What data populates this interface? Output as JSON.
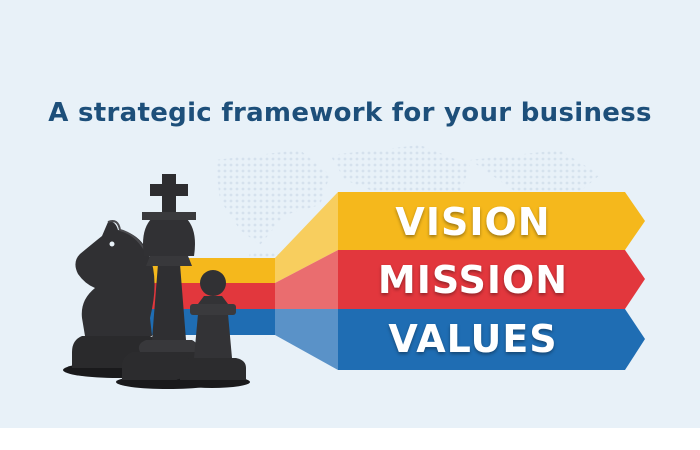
{
  "title": "A strategic framework for your business",
  "banners": [
    {
      "label": "VISION",
      "color": "#f5b81c"
    },
    {
      "label": "MISSION",
      "color": "#e2373d"
    },
    {
      "label": "VALUES",
      "color": "#1f6db3"
    }
  ],
  "chess_pieces": [
    "knight",
    "king",
    "pawn"
  ],
  "colors": {
    "background": "#e8f1f8",
    "title": "#1d4f7a",
    "piece": "#2e2e30"
  }
}
